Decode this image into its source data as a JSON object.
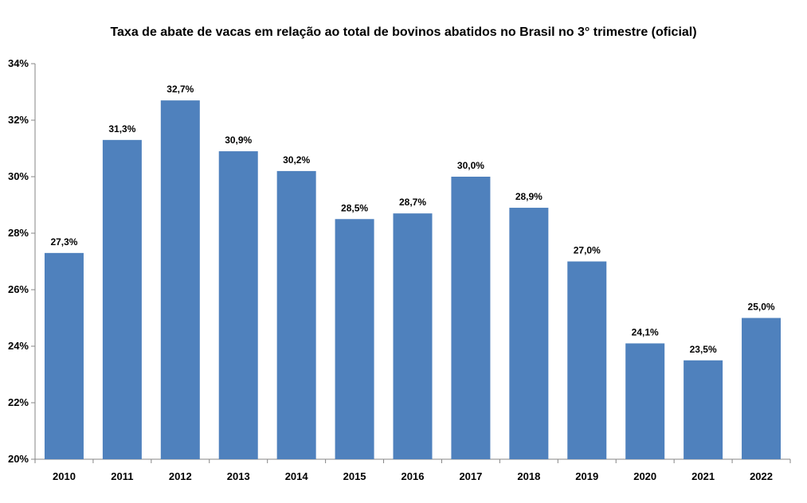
{
  "chart_data": {
    "type": "bar",
    "title": "Taxa de abate de vacas em relação ao total de bovinos abatidos no Brasil  no 3° trimestre (oficial)",
    "xlabel": "",
    "ylabel": "",
    "categories": [
      "2010",
      "2011",
      "2012",
      "2013",
      "2014",
      "2015",
      "2016",
      "2017",
      "2018",
      "2019",
      "2020",
      "2021",
      "2022"
    ],
    "values": [
      27.3,
      31.3,
      32.7,
      30.9,
      30.2,
      28.5,
      28.7,
      30.0,
      28.9,
      27.0,
      24.1,
      23.5,
      25.0
    ],
    "data_labels": [
      "27,3%",
      "31,3%",
      "32,7%",
      "30,9%",
      "30,2%",
      "28,5%",
      "28,7%",
      "30,0%",
      "28,9%",
      "27,0%",
      "24,1%",
      "23,5%",
      "25,0%"
    ],
    "ylim": [
      20,
      34
    ],
    "yticks": [
      20,
      22,
      24,
      26,
      28,
      30,
      32,
      34
    ],
    "ytick_labels": [
      "20%",
      "22%",
      "24%",
      "26%",
      "28%",
      "30%",
      "32%",
      "34%"
    ],
    "grid": false,
    "legend": "none",
    "bar_color": "#4f81bd"
  }
}
